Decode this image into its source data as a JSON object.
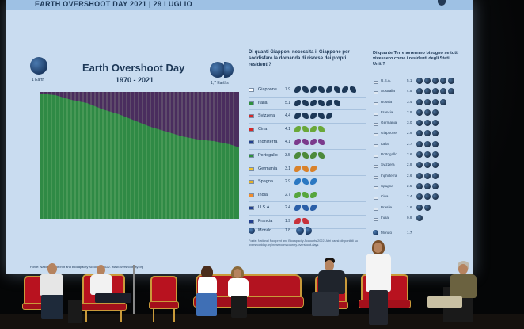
{
  "slide": {
    "title": "EARTH OVERSHOOT DAY 2021 | 29 LUGLIO",
    "chart_title": "Earth Overshoot Day",
    "chart_years": "1970 - 2021",
    "left_globe_label": "1 Earth",
    "right_globe_label": "1,7 Earths",
    "source": "Fonte: National Footprint and Biocapacity Accounts 2022. www.overshootday.org"
  },
  "table": {
    "heading": "Di quanti Giapponi necessita il Giappone per soddisfare la domanda di risorse dei propri residenti?",
    "rows": [
      {
        "name": "Giappone",
        "value": "7.9",
        "color": "#1d3857",
        "flag": "#ffffff",
        "count": 8
      },
      {
        "name": "Italia",
        "value": "5.1",
        "color": "#1d3857",
        "flag": "#2f8f3e",
        "count": 6
      },
      {
        "name": "Svizzera",
        "value": "4.4",
        "color": "#1d3857",
        "flag": "#d62828",
        "count": 5
      },
      {
        "name": "Cina",
        "value": "4.1",
        "color": "#6aa839",
        "flag": "#d62828",
        "count": 4
      },
      {
        "name": "Inghilterra",
        "value": "4.1",
        "color": "#7b3a8c",
        "flag": "#23408e",
        "count": 4
      },
      {
        "name": "Portogallo",
        "value": "3.5",
        "color": "#4d8a3b",
        "flag": "#2f8f3e",
        "count": 4
      },
      {
        "name": "Germania",
        "value": "3.1",
        "color": "#d9822b",
        "flag": "#f2c230",
        "count": 3
      },
      {
        "name": "Spagna",
        "value": "2.9",
        "color": "#2b78c2",
        "flag": "#e3b02a",
        "count": 3
      },
      {
        "name": "India",
        "value": "2.7",
        "color": "#57a63d",
        "flag": "#f08c2e",
        "count": 3
      },
      {
        "name": "U.S.A.",
        "value": "2.4",
        "color": "#2b5fa8",
        "flag": "#23408e",
        "count": 3
      },
      {
        "name": "Francia",
        "value": "1.9",
        "color": "#c8323b",
        "flag": "#23408e",
        "count": 2
      }
    ],
    "world": {
      "name": "Mondo",
      "value": "1.8"
    },
    "note": "Fonte: National Footprint and Biocapacity Accounts 2022. Altri paesi: disponibili su overshootday.org/newsroom/country-overshoot-days"
  },
  "earths": {
    "heading": "Di quante Terre avremmo bisogno se tutti vivessero come i residenti degli Stati Uniti?",
    "rows": [
      {
        "name": "U.S.A.",
        "value": "5.1",
        "count": 5
      },
      {
        "name": "Australia",
        "value": "4.5",
        "count": 5
      },
      {
        "name": "Russia",
        "value": "3.4",
        "count": 4
      },
      {
        "name": "Francia",
        "value": "2.9",
        "count": 3
      },
      {
        "name": "Germania",
        "value": "3.0",
        "count": 3
      },
      {
        "name": "Giappone",
        "value": "2.9",
        "count": 3
      },
      {
        "name": "Italia",
        "value": "2.7",
        "count": 3
      },
      {
        "name": "Portogallo",
        "value": "2.6",
        "count": 3
      },
      {
        "name": "Svizzera",
        "value": "2.8",
        "count": 3
      },
      {
        "name": "Inghilterra",
        "value": "2.6",
        "count": 3
      },
      {
        "name": "Spagna",
        "value": "2.5",
        "count": 3
      },
      {
        "name": "Cina",
        "value": "2.4",
        "count": 3
      },
      {
        "name": "Brasile",
        "value": "1.6",
        "count": 2
      },
      {
        "name": "India",
        "value": "0.8",
        "count": 1
      }
    ],
    "world": {
      "name": "Mondo",
      "value": "1.7"
    }
  },
  "colors": {
    "green": "#2f8a45",
    "purple": "#4a2d5e",
    "navy": "#1d3857"
  }
}
